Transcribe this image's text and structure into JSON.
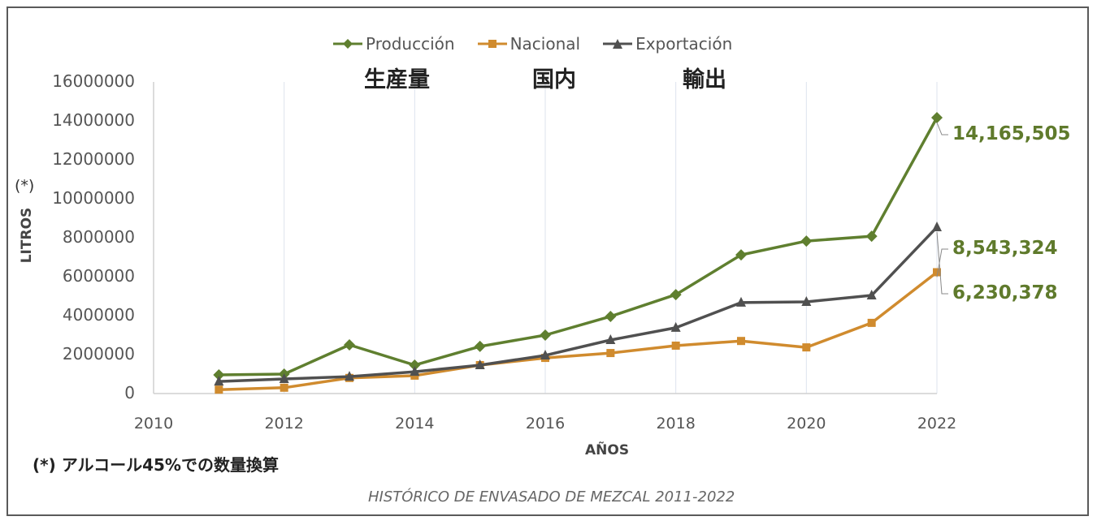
{
  "chart_data": {
    "type": "line",
    "title": "",
    "xlabel": "AÑOS",
    "ylabel": "LITROS",
    "ylabel_marker": "(*)",
    "xlim": [
      2010,
      2022
    ],
    "ylim": [
      0,
      16000000
    ],
    "x_ticks": [
      "2010",
      "2012",
      "2014",
      "2016",
      "2018",
      "2020",
      "2022"
    ],
    "y_ticks": [
      "0",
      "2000000",
      "4000000",
      "6000000",
      "8000000",
      "10000000",
      "12000000",
      "14000000",
      "16000000"
    ],
    "grid": "vertical",
    "legend_position": "top",
    "x": [
      2011,
      2012,
      2013,
      2014,
      2015,
      2016,
      2017,
      2018,
      2019,
      2020,
      2021,
      2022
    ],
    "series": [
      {
        "name": "Producción",
        "jp_label": "生産量",
        "color": "#5f7f2f",
        "marker": "diamond",
        "values": [
          960000,
          1000000,
          2500000,
          1460000,
          2420000,
          3000000,
          3960000,
          5080000,
          7120000,
          7830000,
          8080000,
          14165505
        ],
        "end_label": "14,165,505"
      },
      {
        "name": "Nacional",
        "jp_label": "国内",
        "color": "#d08b2e",
        "marker": "square",
        "values": [
          200000,
          300000,
          800000,
          920000,
          1460000,
          1830000,
          2080000,
          2460000,
          2700000,
          2370000,
          3630000,
          6230378
        ],
        "end_label": "6,230,378"
      },
      {
        "name": "Exportación",
        "jp_label": "輸出",
        "color": "#505050",
        "marker": "triangle",
        "values": [
          620000,
          750000,
          870000,
          1120000,
          1460000,
          1960000,
          2750000,
          3380000,
          4670000,
          4710000,
          5040000,
          8543324
        ],
        "end_label": "8,543,324"
      }
    ],
    "footnote": "(*) アルコール45%での数量換算",
    "caption": "HISTÓRICO DE ENVASADO DE MEZCAL 2011-2022"
  }
}
